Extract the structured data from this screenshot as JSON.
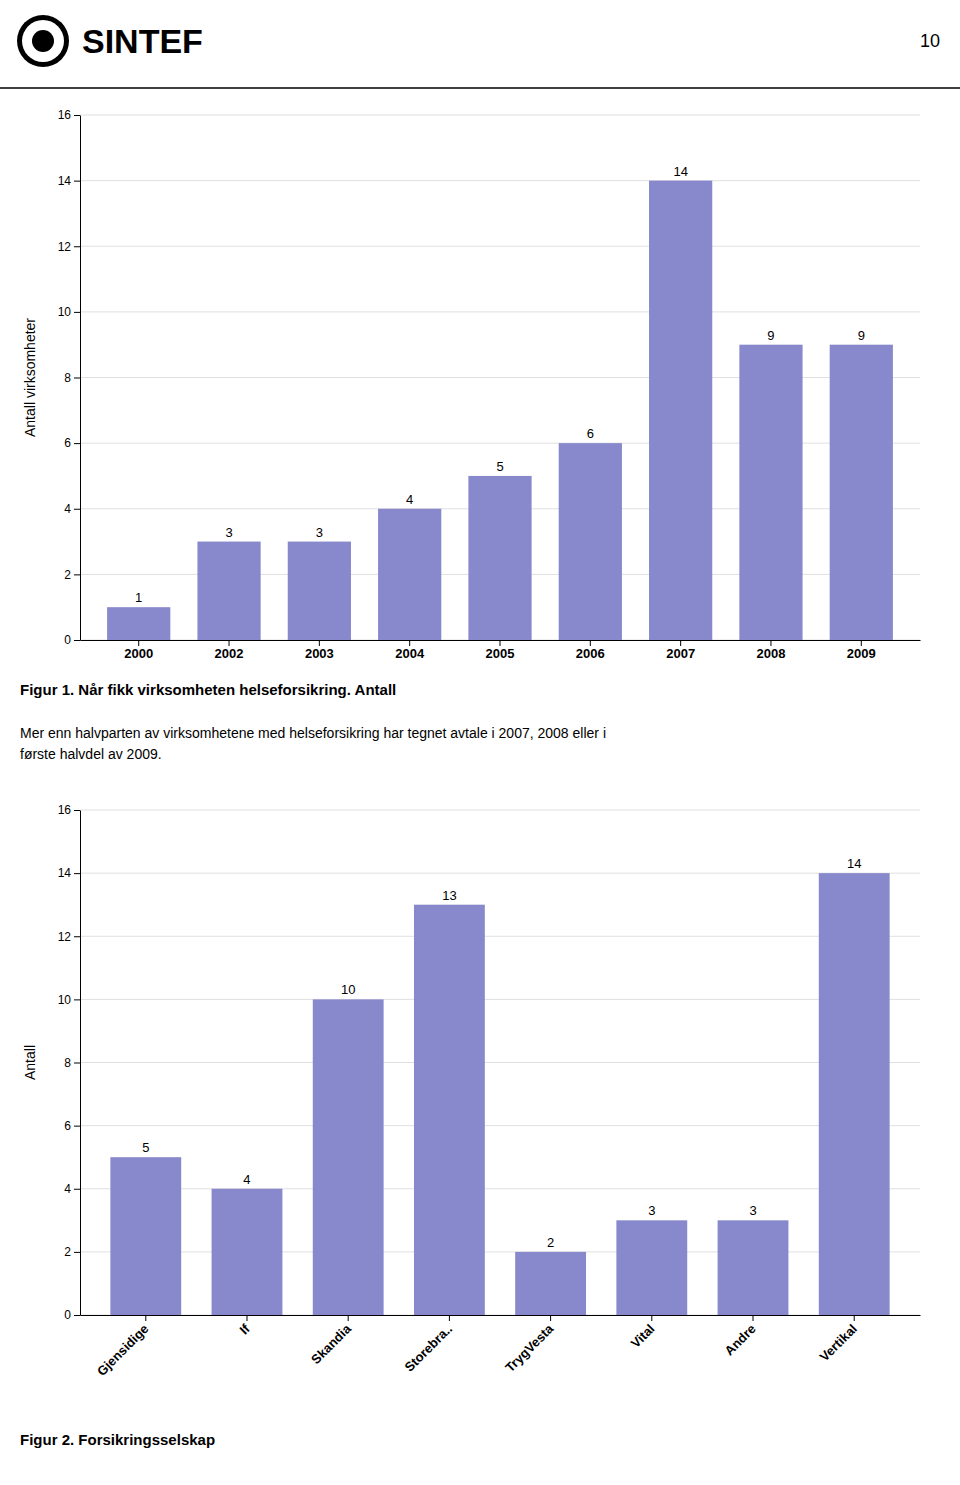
{
  "header": "SINTEF",
  "page_number": "10",
  "text": "Mer enn halvparten av virksomhetene med helseforsikring har tegnet avtale i 2007, 2008 eller i\nførste halvdel av 2009.",
  "chart_data": [
    {
      "type": "bar",
      "title": "Figur 1. Når fikk virksomheten helseforsikring. Antall",
      "y_label": "Antall virksomheter",
      "categories": [
        "2000",
        "2002",
        "2003",
        "2004",
        "2005",
        "2006",
        "2007",
        "2008",
        "2009"
      ],
      "values": [
        1,
        3,
        3,
        4,
        5,
        6,
        14,
        9,
        9
      ],
      "color": "#8888cc",
      "ylim": [
        0,
        16
      ],
      "yticks": [
        0,
        2,
        4,
        6,
        8,
        10,
        12,
        14,
        16
      ],
      "grid": true,
      "data_labels": true
    },
    {
      "type": "bar",
      "title": "Figur 2. Forsikringsselskap",
      "y_label": "Antall",
      "categories": [
        "Gjensidige",
        "If",
        "Skandia",
        "Storebra..",
        "TrygVesta",
        "Vital",
        "Andre",
        "Vertikal"
      ],
      "values": [
        5,
        4,
        10,
        13,
        2,
        3,
        3,
        14
      ],
      "color": "#8888cc",
      "ylim": [
        0,
        16
      ],
      "yticks": [
        0,
        2,
        4,
        6,
        8,
        10,
        12,
        14,
        16
      ],
      "grid": true,
      "data_labels": true
    }
  ]
}
